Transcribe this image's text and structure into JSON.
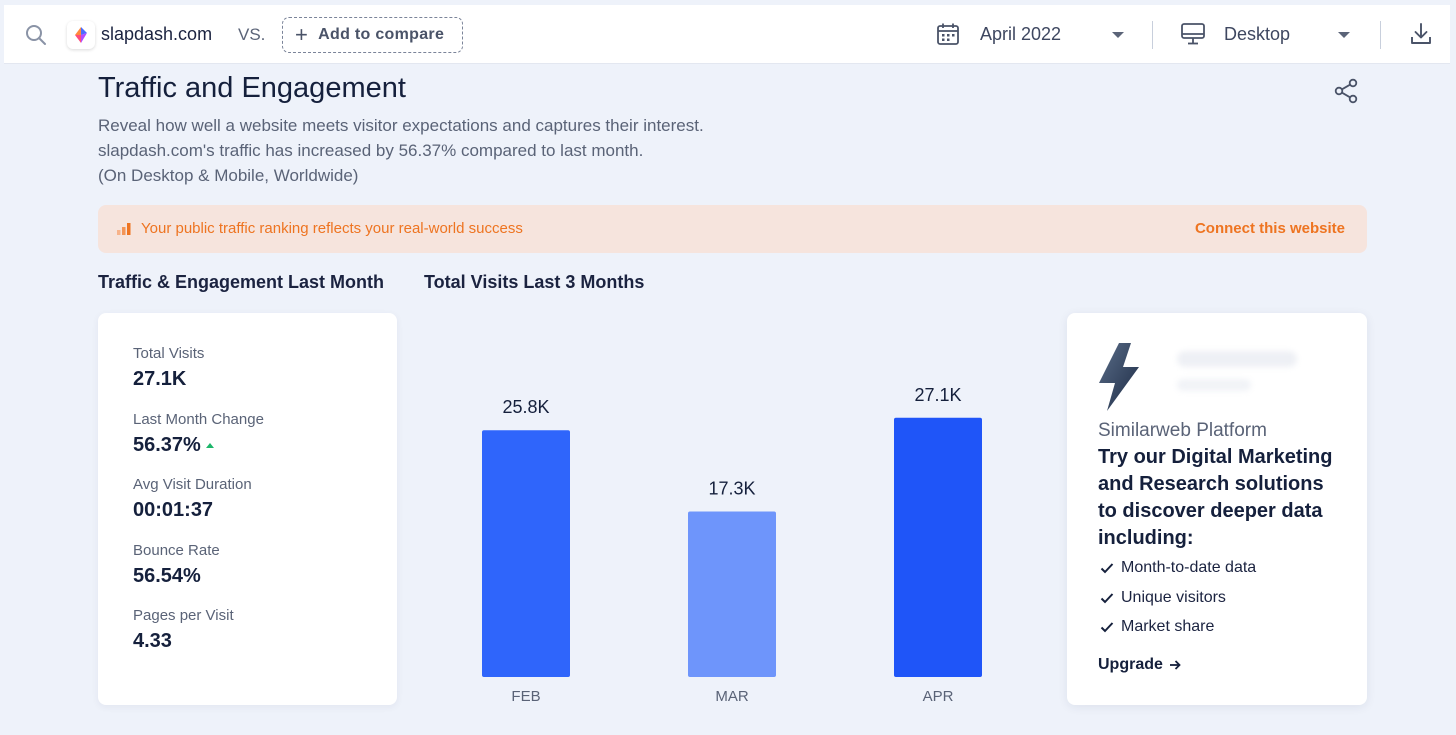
{
  "topbar": {
    "site": "slapdash.com",
    "vs": "VS.",
    "add_compare": "Add to compare",
    "month": "April 2022",
    "device": "Desktop"
  },
  "header": {
    "title": "Traffic and Engagement",
    "desc_line1": "Reveal how well a website meets visitor expectations and captures their interest.",
    "desc_line2": "slapdash.com's traffic has increased by 56.37% compared to last month.",
    "desc_line3": "(On Desktop & Mobile, Worldwide)"
  },
  "banner": {
    "text": "Your public traffic ranking reflects your real-world success",
    "action": "Connect this website",
    "color": "#ee7421"
  },
  "sections": {
    "engagement_label": "Traffic & Engagement Last Month",
    "visits_label": "Total Visits Last 3 Months"
  },
  "metrics": [
    {
      "label": "Total Visits",
      "value": "27.1K"
    },
    {
      "label": "Last Month Change",
      "value": "56.37%",
      "trend": "up"
    },
    {
      "label": "Avg Visit Duration",
      "value": "00:01:37"
    },
    {
      "label": "Bounce Rate",
      "value": "56.54%"
    },
    {
      "label": "Pages per Visit",
      "value": "4.33"
    }
  ],
  "chart_data": {
    "type": "bar",
    "title": "Total Visits Last 3 Months",
    "categories": [
      "FEB",
      "MAR",
      "APR"
    ],
    "values": [
      25.8,
      17.3,
      27.1
    ],
    "data_labels": [
      "25.8K",
      "17.3K",
      "27.1K"
    ],
    "unit": "K",
    "colors": [
      "#2f65fb",
      "#6e95fb",
      "#1f55f8"
    ],
    "grid": false,
    "legend": "none"
  },
  "promo": {
    "title": "Similarweb Platform",
    "headline": "Try our Digital Marketing and Research solutions to discover deeper data including:",
    "features": [
      "Month-to-date data",
      "Unique visitors",
      "Market share"
    ],
    "cta": "Upgrade"
  },
  "icons": {
    "search": "search-icon",
    "calendar": "calendar-icon",
    "desktop": "desktop-icon",
    "download": "download-icon",
    "share": "share-icon",
    "bolt": "bolt-logo-icon"
  }
}
